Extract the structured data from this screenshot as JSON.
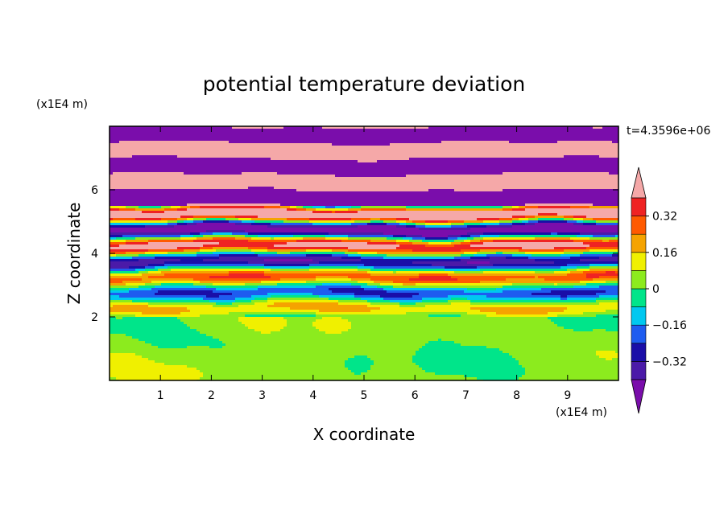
{
  "chart_data": {
    "type": "heatmap",
    "title": "potential temperature deviation",
    "xlabel": "X coordinate",
    "ylabel": "Z coordinate",
    "x_unit": "(x1E4 m)",
    "y_unit": "(x1E4 m)",
    "time_label": "t=4.3596e+06",
    "xlim": [
      0,
      10
    ],
    "ylim": [
      0,
      8
    ],
    "x_ticks": [
      "1",
      "2",
      "3",
      "4",
      "5",
      "6",
      "7",
      "8",
      "9"
    ],
    "y_ticks": [
      "2",
      "4",
      "6"
    ],
    "colorbar": {
      "levels": [
        -0.48,
        -0.4,
        -0.32,
        -0.24,
        -0.16,
        -0.08,
        0,
        0.08,
        0.16,
        0.24,
        0.32,
        0.4,
        0.48
      ],
      "tick_labels": [
        "0.32",
        "0.16",
        "0",
        "−0.16",
        "−0.32"
      ],
      "tick_values": [
        0.32,
        0.16,
        0,
        -0.16,
        -0.32
      ],
      "colors": [
        "#7a0dab",
        "#4b1aa8",
        "#1a0ea8",
        "#1e5cf0",
        "#00c8f0",
        "#00e58a",
        "#8ceb1e",
        "#f0f000",
        "#f5a300",
        "#ff5a00",
        "#ef2323",
        "#f5a8a8"
      ],
      "extend": "both"
    },
    "grid": false
  }
}
